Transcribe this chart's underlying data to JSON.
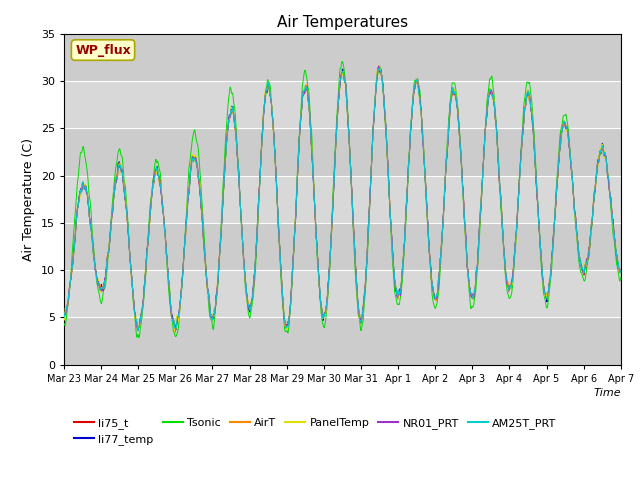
{
  "title": "Air Temperatures",
  "ylabel": "Air Temperature (C)",
  "xlabel": "Time",
  "ylim": [
    0,
    35
  ],
  "background_color": "#ffffff",
  "plot_bg_color": "#d8d8d8",
  "series_colors": {
    "li75_t": "#dd0000",
    "li77_temp": "#0000cc",
    "Tsonic": "#00dd00",
    "AirT": "#ff8800",
    "PanelTemp": "#dddd00",
    "NR01_PRT": "#9933cc",
    "AM25T_PRT": "#00cccc"
  },
  "legend_labels": [
    "li75_t",
    "li77_temp",
    "Tsonic",
    "AirT",
    "PanelTemp",
    "NR01_PRT",
    "AM25T_PRT"
  ],
  "annotation_text": "WP_flux",
  "annotation_color": "#990000",
  "annotation_bg": "#ffffcc",
  "n_days": 15,
  "x_ticks": [
    "Mar 23",
    "Mar 24",
    "Mar 25",
    "Mar 26",
    "Mar 27",
    "Mar 28",
    "Mar 29",
    "Mar 30",
    "Mar 31",
    "Apr 1",
    "Apr 2",
    "Apr 3",
    "Apr 4",
    "Apr 5",
    "Apr 6",
    "Apr 7"
  ],
  "day_maxima_base": [
    17,
    21,
    21,
    20,
    24,
    30,
    29,
    30,
    32,
    31,
    29,
    29,
    29,
    28,
    23
  ],
  "day_minima_base": [
    5,
    8,
    4,
    4,
    5,
    6,
    4,
    5,
    5,
    7,
    7,
    7,
    8,
    7,
    10
  ],
  "tsonic_extra": [
    5,
    2,
    1,
    1,
    4,
    0,
    1,
    2,
    0,
    0,
    1,
    1,
    1,
    2,
    0
  ]
}
